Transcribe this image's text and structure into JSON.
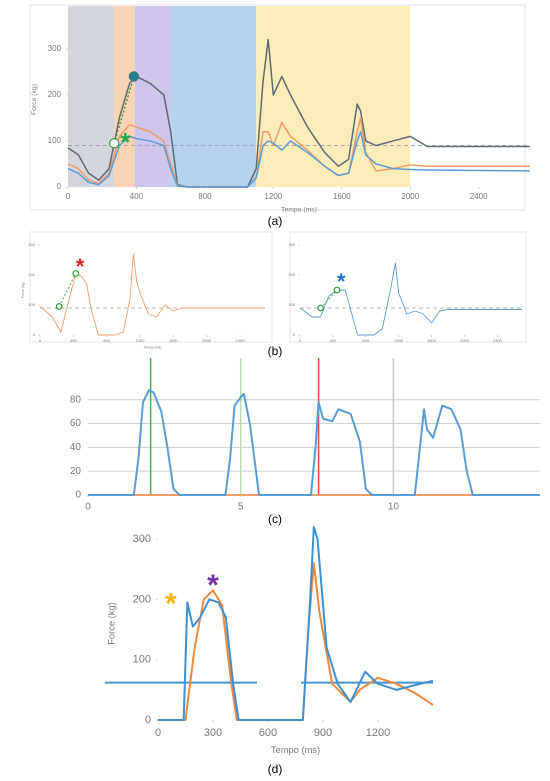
{
  "chart_data": [
    {
      "type": "line",
      "label": "(a)",
      "xlabel": "Tempo (ms)",
      "ylabel": "Force (kg)",
      "xlim": [
        0,
        2700
      ],
      "ylim": [
        0,
        380
      ],
      "xticks": [
        0,
        400,
        800,
        1200,
        1600,
        2000,
        2400
      ],
      "yticks": [
        0,
        100,
        200,
        300
      ],
      "regions": [
        {
          "start": 0,
          "end": 270,
          "color": "#d3d6dc"
        },
        {
          "start": 270,
          "end": 390,
          "color": "#f9d3b5"
        },
        {
          "start": 390,
          "end": 600,
          "color": "#cfc5e8"
        },
        {
          "start": 600,
          "end": 1100,
          "color": "#b7d3ec"
        },
        {
          "start": 1100,
          "end": 2000,
          "color": "#fbedb8"
        }
      ],
      "hline": 90,
      "series": [
        {
          "color": "#5d6a72",
          "x": [
            0,
            60,
            120,
            180,
            240,
            300,
            360,
            400,
            480,
            560,
            600,
            640,
            700,
            1050,
            1100,
            1140,
            1170,
            1200,
            1250,
            1300,
            1400,
            1500,
            1580,
            1640,
            1690,
            1710,
            1740,
            1800,
            1900,
            2000,
            2100,
            2700
          ],
          "values": [
            85,
            70,
            30,
            15,
            40,
            150,
            225,
            240,
            225,
            200,
            120,
            5,
            0,
            0,
            40,
            230,
            320,
            200,
            240,
            200,
            130,
            75,
            45,
            60,
            180,
            165,
            100,
            90,
            100,
            110,
            88,
            88
          ]
        },
        {
          "color": "#f29b6a",
          "x": [
            0,
            60,
            120,
            180,
            240,
            300,
            360,
            400,
            480,
            560,
            600,
            640,
            700,
            1050,
            1100,
            1140,
            1170,
            1200,
            1250,
            1300,
            1400,
            1500,
            1580,
            1640,
            1690,
            1710,
            1740,
            1800,
            1900,
            2000,
            2100,
            2700
          ],
          "values": [
            50,
            40,
            15,
            8,
            30,
            110,
            135,
            130,
            120,
            100,
            50,
            3,
            0,
            0,
            20,
            120,
            120,
            90,
            140,
            110,
            80,
            45,
            25,
            30,
            120,
            150,
            75,
            35,
            40,
            48,
            45,
            45
          ]
        },
        {
          "color": "#5b9bd5",
          "x": [
            0,
            60,
            120,
            180,
            240,
            300,
            360,
            400,
            480,
            560,
            600,
            640,
            700,
            1050,
            1100,
            1140,
            1170,
            1200,
            1250,
            1300,
            1400,
            1500,
            1580,
            1640,
            1690,
            1710,
            1740,
            1800,
            1900,
            2000,
            2100,
            2700
          ],
          "values": [
            40,
            30,
            10,
            5,
            25,
            90,
            110,
            105,
            100,
            90,
            40,
            2,
            0,
            0,
            20,
            90,
            100,
            95,
            80,
            100,
            75,
            45,
            25,
            30,
            100,
            120,
            70,
            50,
            40,
            38,
            37,
            35
          ]
        }
      ],
      "points": [
        {
          "x": 270,
          "y": 95,
          "color": "#2ca02c",
          "filled": false
        },
        {
          "x": 385,
          "y": 240,
          "color": "#2a7f8f",
          "filled": true
        }
      ],
      "annotations": [
        {
          "text": "*",
          "x": 335,
          "y": 110,
          "color": "#22a84a"
        }
      ]
    },
    {
      "type": "line",
      "label": "(b)",
      "xlabel": "Tempo (ms)",
      "ylabel": "Force (kg)",
      "xlim": [
        0,
        2700
      ],
      "ylim": [
        0,
        300
      ],
      "xticks": [
        0,
        400,
        800,
        1200,
        1600,
        2000,
        2400
      ],
      "yticks": [
        0,
        100,
        200,
        300
      ],
      "hline": 90,
      "series": [
        {
          "color": "#f29b6a",
          "x": [
            0,
            150,
            250,
            350,
            430,
            500,
            560,
            620,
            700,
            900,
            1000,
            1080,
            1120,
            1160,
            1200,
            1300,
            1400,
            1500,
            1600,
            1700,
            2000,
            2400,
            2700
          ],
          "values": [
            95,
            60,
            10,
            120,
            205,
            195,
            170,
            80,
            0,
            0,
            10,
            120,
            270,
            180,
            140,
            70,
            60,
            100,
            80,
            90,
            90,
            90,
            90
          ]
        }
      ],
      "points": [
        {
          "x": 230,
          "y": 95,
          "color": "#2ca02c",
          "filled": false
        },
        {
          "x": 430,
          "y": 205,
          "color": "#2ca02c",
          "filled": false
        }
      ],
      "annotations": [
        {
          "text": "*",
          "x": 480,
          "y": 245,
          "color": "#e8222a"
        }
      ]
    },
    {
      "type": "line",
      "xlim": [
        0,
        2700
      ],
      "ylim": [
        0,
        300
      ],
      "xticks": [
        0,
        400,
        800,
        1200,
        1600,
        2000,
        2400
      ],
      "yticks": [
        0,
        100,
        200,
        300
      ],
      "hline": 90,
      "series": [
        {
          "color": "#5b9bd5",
          "x": [
            0,
            150,
            250,
            350,
            450,
            550,
            620,
            700,
            900,
            1000,
            1100,
            1160,
            1200,
            1300,
            1400,
            1500,
            1600,
            1700,
            1800,
            2000,
            2400,
            2700
          ],
          "values": [
            90,
            60,
            60,
            130,
            150,
            150,
            80,
            0,
            0,
            20,
            150,
            240,
            140,
            70,
            80,
            70,
            40,
            80,
            85,
            85,
            85,
            85
          ]
        }
      ],
      "points": [
        {
          "x": 250,
          "y": 90,
          "color": "#2ca02c",
          "filled": false
        },
        {
          "x": 450,
          "y": 150,
          "color": "#2ca02c",
          "filled": false
        }
      ],
      "annotations": [
        {
          "text": "*",
          "x": 500,
          "y": 195,
          "color": "#1f6fc9"
        }
      ]
    },
    {
      "type": "line",
      "label": "(c)",
      "grid": true,
      "xlim": [
        0,
        14.8
      ],
      "ylim": [
        0,
        115
      ],
      "xticks": [
        0,
        5,
        10
      ],
      "yticks": [
        0,
        20,
        40,
        60,
        80
      ],
      "vlines": [
        {
          "x": 2.05,
          "color": "#3cb44b"
        },
        {
          "x": 5,
          "color": "#b8dcb0"
        },
        {
          "x": 7.55,
          "color": "#e8483c"
        },
        {
          "x": 10,
          "color": "#c8c8c8"
        }
      ],
      "series": [
        {
          "color": "#f29b6a",
          "x": [
            0,
            14.8
          ],
          "values": [
            0,
            0
          ]
        },
        {
          "color": "#5b9bd5",
          "x": [
            0,
            1.5,
            1.65,
            1.8,
            2.0,
            2.15,
            2.4,
            2.6,
            2.8,
            3.0,
            4.5,
            4.65,
            4.8,
            5.0,
            5.1,
            5.3,
            5.5,
            5.6,
            7.3,
            7.45,
            7.55,
            7.7,
            8.0,
            8.2,
            8.6,
            8.9,
            9.1,
            9.3,
            10.7,
            10.85,
            11.0,
            11.1,
            11.3,
            11.6,
            11.9,
            12.2,
            12.4,
            12.6,
            14.8
          ],
          "values": [
            0,
            0,
            30,
            78,
            88,
            86,
            70,
            40,
            5,
            0,
            0,
            30,
            75,
            82,
            85,
            60,
            20,
            0,
            0,
            40,
            78,
            64,
            62,
            72,
            68,
            45,
            5,
            0,
            0,
            35,
            72,
            55,
            48,
            75,
            72,
            55,
            20,
            0,
            0
          ]
        }
      ]
    },
    {
      "type": "line",
      "label": "(d)",
      "xlabel": "Tempo (ms)",
      "ylabel": "Force (kg)",
      "xlim": [
        0,
        1500
      ],
      "ylim": [
        0,
        320
      ],
      "xticks": [
        0,
        300,
        600,
        900,
        1200
      ],
      "yticks": [
        0,
        100,
        200,
        300
      ],
      "hsegments": [
        {
          "y": 62,
          "from": -290,
          "to": 540,
          "color": "#4a90c8"
        },
        {
          "y": 62,
          "from": 780,
          "to": 1500,
          "color": "#4a90c8"
        }
      ],
      "series": [
        {
          "color": "#f0883e",
          "x": [
            0,
            150,
            200,
            250,
            300,
            350,
            400,
            430,
            790,
            820,
            850,
            880,
            950,
            1050,
            1100,
            1200,
            1300,
            1400,
            1500
          ],
          "values": [
            0,
            0,
            120,
            200,
            215,
            190,
            60,
            0,
            0,
            150,
            260,
            180,
            60,
            30,
            50,
            70,
            60,
            45,
            25
          ]
        },
        {
          "color": "#3d8fd1",
          "x": [
            0,
            140,
            160,
            190,
            230,
            280,
            330,
            370,
            410,
            440,
            790,
            810,
            830,
            850,
            870,
            920,
            980,
            1050,
            1130,
            1200,
            1300,
            1430,
            1500
          ],
          "values": [
            0,
            0,
            195,
            155,
            170,
            200,
            195,
            170,
            60,
            0,
            0,
            100,
            200,
            320,
            300,
            120,
            60,
            30,
            80,
            60,
            50,
            60,
            65
          ]
        }
      ],
      "annotations": [
        {
          "text": "*",
          "x": 70,
          "y": 205,
          "color": "#f7b514"
        },
        {
          "text": "*",
          "x": 300,
          "y": 235,
          "color": "#7030a0"
        }
      ]
    }
  ]
}
